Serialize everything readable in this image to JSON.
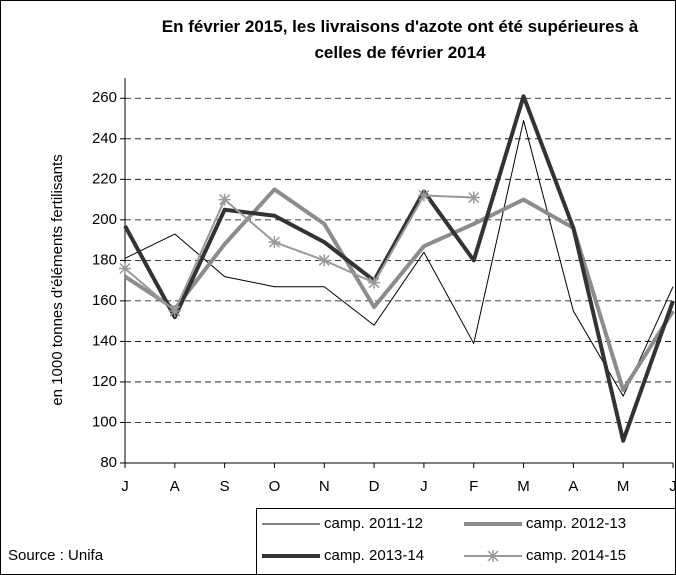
{
  "chart_data": {
    "type": "line",
    "title": "En février 2015, les livraisons d'azote ont été supérieures à celles de février 2014",
    "y_label": "en 1000 tonnes d'éléments fertilisants",
    "source": "Source : Unifa",
    "categories": [
      "J",
      "A",
      "S",
      "O",
      "N",
      "D",
      "J",
      "F",
      "M",
      "A",
      "M",
      "J"
    ],
    "ylim": [
      80,
      270
    ],
    "yticks": [
      80,
      100,
      120,
      140,
      160,
      180,
      200,
      220,
      240,
      260
    ],
    "grid": true,
    "series": [
      {
        "name": "camp. 2011-12",
        "color": "#000000",
        "width": 1,
        "values": [
          181,
          193,
          172,
          167,
          167,
          148,
          184,
          139,
          249,
          155,
          113,
          167
        ]
      },
      {
        "name": "camp. 2012-13",
        "color": "#8c8c8c",
        "width": 4,
        "values": [
          172,
          156,
          188,
          215,
          198,
          157,
          187,
          198,
          210,
          196,
          116,
          155
        ]
      },
      {
        "name": "camp. 2013-14",
        "color": "#333333",
        "width": 4,
        "values": [
          197,
          152,
          205,
          202,
          189,
          170,
          214,
          180,
          261,
          196,
          91,
          160
        ]
      },
      {
        "name": "camp. 2014-15",
        "color": "#999999",
        "width": 2,
        "marker": "star",
        "values": [
          176,
          155,
          210,
          189,
          180,
          169,
          212,
          211,
          null,
          null,
          null,
          null
        ]
      }
    ]
  }
}
